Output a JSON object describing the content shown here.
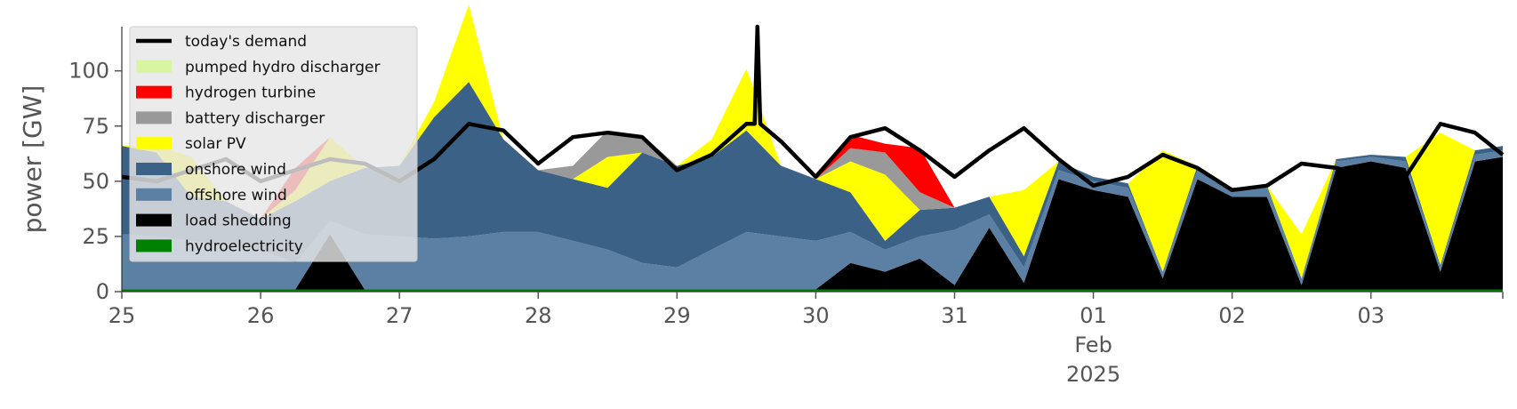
{
  "chart_data": {
    "type": "area",
    "ylabel": "power [GW]",
    "ylim": [
      0,
      120
    ],
    "yticks": [
      0,
      25,
      50,
      75,
      100
    ],
    "xlim": [
      0,
      9.95
    ],
    "grid": false,
    "legend_position": "top-left",
    "x_ticks": [
      {
        "x": 0,
        "label": "25"
      },
      {
        "x": 1,
        "label": "26"
      },
      {
        "x": 2,
        "label": "27"
      },
      {
        "x": 3,
        "label": "28"
      },
      {
        "x": 4,
        "label": "29"
      },
      {
        "x": 5,
        "label": "30"
      },
      {
        "x": 6,
        "label": "31"
      },
      {
        "x": 7,
        "label": "01",
        "sub": [
          "Feb",
          "2025"
        ]
      },
      {
        "x": 8,
        "label": "02"
      },
      {
        "x": 9,
        "label": "03"
      }
    ],
    "x": [
      0,
      0.25,
      0.5,
      0.75,
      1,
      1.25,
      1.5,
      1.75,
      2,
      2.25,
      2.5,
      2.75,
      3,
      3.25,
      3.5,
      3.75,
      4,
      4.25,
      4.5,
      4.75,
      5,
      5.25,
      5.5,
      5.75,
      6,
      6.25,
      6.5,
      6.75,
      7,
      7.25,
      7.5,
      7.75,
      8,
      8.25,
      8.5,
      8.75,
      9,
      9.25,
      9.5,
      9.75,
      9.95
    ],
    "series": [
      {
        "name": "hydroelectricity",
        "color": "#008000",
        "values": [
          1,
          1,
          1,
          1,
          1,
          1,
          1,
          1,
          1,
          1,
          1,
          1,
          1,
          1,
          1,
          1,
          1,
          1,
          1,
          1,
          1,
          1,
          1,
          1,
          1,
          1,
          1,
          1,
          1,
          1,
          1,
          1,
          1,
          1,
          1,
          1,
          1,
          1,
          1,
          1,
          1
        ]
      },
      {
        "name": "load shedding",
        "color": "#000000",
        "values": [
          0,
          0,
          0,
          0,
          0,
          0,
          25,
          0,
          0,
          0,
          0,
          0,
          0,
          0,
          0,
          0,
          0,
          0,
          0,
          0,
          0,
          12,
          8,
          14,
          2,
          28,
          3,
          50,
          45,
          42,
          5,
          50,
          42,
          42,
          2,
          55,
          58,
          55,
          8,
          58,
          60
        ]
      },
      {
        "name": "offshore wind",
        "color": "#5b80a4",
        "values": [
          25,
          24,
          22,
          20,
          18,
          12,
          6,
          25,
          24,
          23,
          24,
          26,
          26,
          22,
          18,
          12,
          10,
          18,
          26,
          24,
          22,
          14,
          10,
          10,
          25,
          6,
          7,
          4,
          4,
          4,
          3,
          4,
          3,
          4,
          3,
          3,
          2,
          3,
          2,
          3,
          3
        ]
      },
      {
        "name": "onshore wind",
        "color": "#3c6186",
        "values": [
          40,
          38,
          20,
          20,
          14,
          28,
          18,
          30,
          32,
          55,
          70,
          42,
          28,
          28,
          28,
          50,
          46,
          42,
          46,
          32,
          28,
          18,
          4,
          12,
          10,
          8,
          5,
          4,
          2,
          2,
          0,
          2,
          1,
          1,
          0,
          1,
          1,
          2,
          1,
          2,
          2
        ]
      },
      {
        "name": "solar PV",
        "color": "#ffff00",
        "values": [
          0,
          3,
          18,
          0,
          0,
          5,
          20,
          0,
          0,
          7,
          35,
          0,
          0,
          0,
          14,
          0,
          0,
          8,
          28,
          0,
          0,
          14,
          30,
          0,
          0,
          0,
          30,
          0,
          0,
          0,
          55,
          0,
          0,
          0,
          20,
          0,
          0,
          0,
          60,
          0,
          0
        ]
      },
      {
        "name": "battery discharger",
        "color": "#999999",
        "values": [
          0,
          0,
          0,
          0,
          0,
          0,
          0,
          0,
          0,
          0,
          0,
          0,
          0,
          6,
          12,
          8,
          0,
          0,
          0,
          0,
          0,
          6,
          10,
          8,
          0,
          0,
          0,
          0,
          0,
          0,
          0,
          0,
          0,
          0,
          0,
          0,
          0,
          0,
          0,
          0,
          0
        ]
      },
      {
        "name": "hydrogen turbine",
        "color": "#ff0000",
        "values": [
          0,
          0,
          0,
          0,
          0,
          10,
          0,
          0,
          0,
          0,
          0,
          0,
          0,
          0,
          0,
          0,
          0,
          0,
          0,
          0,
          0,
          6,
          4,
          20,
          0,
          0,
          0,
          0,
          0,
          0,
          0,
          0,
          0,
          0,
          0,
          0,
          0,
          0,
          0,
          0,
          0
        ]
      },
      {
        "name": "pumped hydro discharger",
        "color": "#d8f5a2",
        "values": [
          0,
          0,
          0,
          0,
          0,
          0,
          0,
          0,
          0,
          0,
          0,
          0,
          0,
          0,
          0,
          0,
          0,
          0,
          0,
          0,
          0,
          0,
          0,
          0,
          0,
          0,
          0,
          0,
          0,
          0,
          0,
          0,
          0,
          0,
          0,
          0,
          0,
          0,
          0,
          0,
          0
        ]
      }
    ],
    "demand": {
      "name": "today's demand",
      "color": "#000000",
      "values": [
        52,
        50,
        55,
        60,
        50,
        55,
        60,
        58,
        50,
        60,
        76,
        73,
        58,
        70,
        72,
        70,
        55,
        62,
        76,
        68,
        52,
        70,
        74,
        64,
        52,
        64,
        74,
        60,
        48,
        52,
        62,
        56,
        46,
        48,
        58,
        56,
        52,
        52,
        76,
        72,
        62
      ],
      "spike": {
        "x": 4.58,
        "y": 120
      }
    },
    "legend": [
      {
        "name": "today's demand",
        "color": "#000000",
        "kind": "line"
      },
      {
        "name": "pumped hydro discharger",
        "color": "#d8f5a2",
        "kind": "patch"
      },
      {
        "name": "hydrogen turbine",
        "color": "#ff0000",
        "kind": "patch"
      },
      {
        "name": "battery discharger",
        "color": "#999999",
        "kind": "patch"
      },
      {
        "name": "solar PV",
        "color": "#ffff00",
        "kind": "patch"
      },
      {
        "name": "onshore wind",
        "color": "#3c6186",
        "kind": "patch"
      },
      {
        "name": "offshore wind",
        "color": "#5b80a4",
        "kind": "patch"
      },
      {
        "name": "load shedding",
        "color": "#000000",
        "kind": "patch"
      },
      {
        "name": "hydroelectricity",
        "color": "#008000",
        "kind": "patch"
      }
    ]
  }
}
